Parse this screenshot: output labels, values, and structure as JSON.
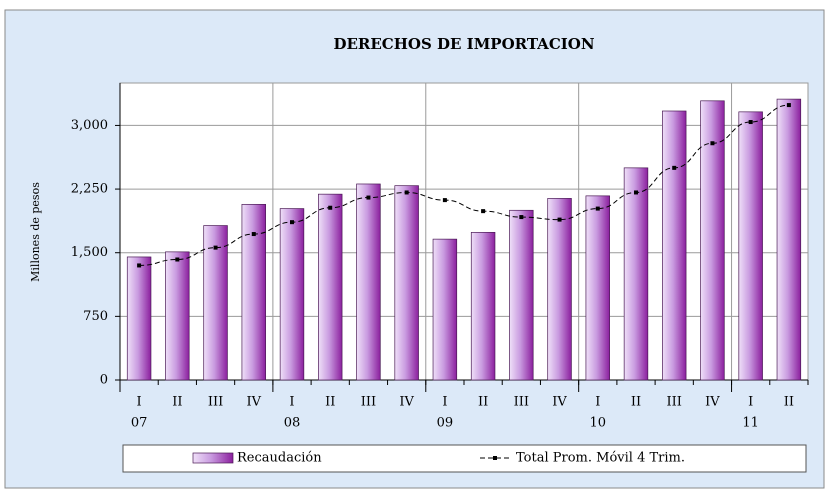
{
  "chart_data": {
    "type": "bar",
    "title": "DERECHOS DE IMPORTACION",
    "y_label": "Millones de pesos",
    "categories": [
      "I",
      "II",
      "III",
      "IV",
      "I",
      "II",
      "III",
      "IV",
      "I",
      "II",
      "III",
      "IV",
      "I",
      "II",
      "III",
      "IV",
      "I",
      "II"
    ],
    "years": [
      "07",
      null,
      null,
      null,
      "08",
      null,
      null,
      null,
      "09",
      null,
      null,
      null,
      "10",
      null,
      null,
      null,
      "11",
      null
    ],
    "series": [
      {
        "name": "Recaudación",
        "type": "bar",
        "color": "#8b1f9e",
        "values": [
          1450,
          1510,
          1820,
          2070,
          2020,
          2190,
          2310,
          2290,
          1660,
          1740,
          2000,
          2140,
          2170,
          2500,
          3170,
          3290,
          3160,
          3310
        ]
      },
      {
        "name": "Total Prom. Móvil 4 Trim.",
        "type": "line",
        "color": "#000000",
        "values": [
          1350,
          1420,
          1560,
          1720,
          1860,
          2030,
          2150,
          2210,
          2120,
          1990,
          1920,
          1890,
          2020,
          2210,
          2500,
          2790,
          3040,
          3240
        ]
      }
    ],
    "ylim": [
      0,
      3500
    ],
    "yticks": [
      0,
      750,
      {
        "value": 1500,
        "label": "1,500"
      },
      {
        "value": 2250,
        "label": "2,250"
      },
      {
        "value": 3000,
        "label": "3,000"
      }
    ],
    "grid": true,
    "legend": "bottom"
  }
}
